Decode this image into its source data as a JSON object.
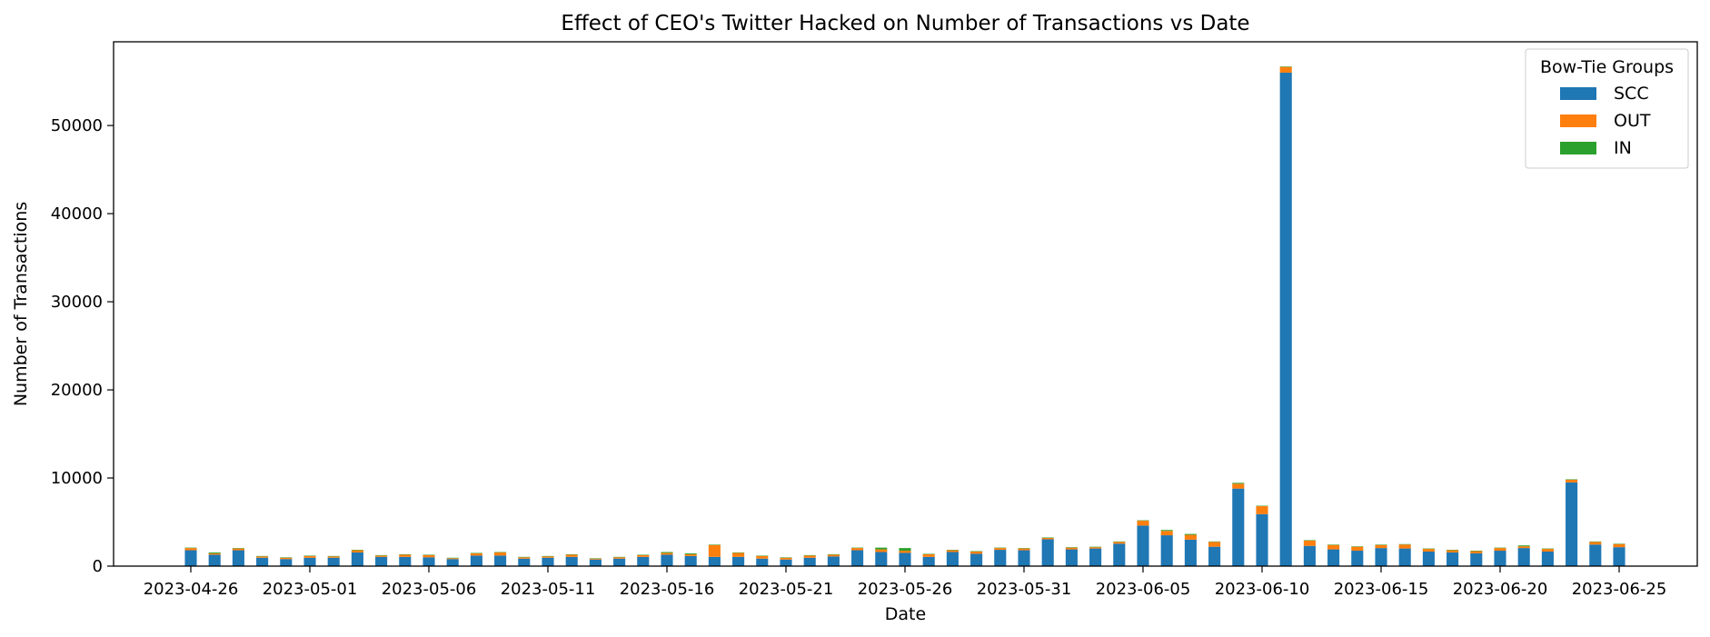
{
  "chart_data": {
    "type": "bar",
    "stacked": true,
    "title": "Effect of CEO's Twitter Hacked on Number of Transactions vs Date",
    "xlabel": "Date",
    "ylabel": "Number of Transactions",
    "ylim": [
      0,
      59500
    ],
    "yticks": [
      0,
      10000,
      20000,
      30000,
      40000,
      50000
    ],
    "grid": false,
    "legend": {
      "title": "Bow-Tie Groups",
      "placement": "top-right"
    },
    "x_tick_labels": [
      "2023-04-26",
      "2023-05-01",
      "2023-05-06",
      "2023-05-11",
      "2023-05-16",
      "2023-05-21",
      "2023-05-26",
      "2023-05-31",
      "2023-06-05",
      "2023-06-10",
      "2023-06-15",
      "2023-06-20",
      "2023-06-25"
    ],
    "categories": [
      "2023-04-26",
      "2023-04-27",
      "2023-04-28",
      "2023-04-29",
      "2023-04-30",
      "2023-05-01",
      "2023-05-02",
      "2023-05-03",
      "2023-05-04",
      "2023-05-05",
      "2023-05-06",
      "2023-05-07",
      "2023-05-08",
      "2023-05-09",
      "2023-05-10",
      "2023-05-11",
      "2023-05-12",
      "2023-05-13",
      "2023-05-14",
      "2023-05-15",
      "2023-05-16",
      "2023-05-17",
      "2023-05-18",
      "2023-05-19",
      "2023-05-20",
      "2023-05-21",
      "2023-05-22",
      "2023-05-23",
      "2023-05-24",
      "2023-05-25",
      "2023-05-26",
      "2023-05-27",
      "2023-05-28",
      "2023-05-29",
      "2023-05-30",
      "2023-05-31",
      "2023-06-01",
      "2023-06-02",
      "2023-06-03",
      "2023-06-04",
      "2023-06-05",
      "2023-06-06",
      "2023-06-07",
      "2023-06-08",
      "2023-06-09",
      "2023-06-10",
      "2023-06-11",
      "2023-06-12",
      "2023-06-13",
      "2023-06-14",
      "2023-06-15",
      "2023-06-16",
      "2023-06-17",
      "2023-06-18",
      "2023-06-19",
      "2023-06-20",
      "2023-06-21",
      "2023-06-22",
      "2023-06-23",
      "2023-06-24",
      "2023-06-25"
    ],
    "series": [
      {
        "name": "SCC",
        "color": "#1f77b4",
        "values": [
          1800,
          1300,
          1800,
          950,
          800,
          950,
          950,
          1550,
          1050,
          1050,
          1000,
          800,
          1200,
          1200,
          850,
          950,
          1050,
          750,
          850,
          1050,
          1300,
          1150,
          1050,
          1050,
          850,
          750,
          950,
          1100,
          1800,
          1600,
          1500,
          1050,
          1600,
          1400,
          1850,
          1800,
          3050,
          1900,
          2000,
          2550,
          4600,
          3500,
          3000,
          2200,
          8800,
          5900,
          56000,
          2300,
          1900,
          1750,
          2050,
          2000,
          1650,
          1550,
          1450,
          1750,
          2050,
          1650,
          9500,
          2450,
          2150
        ]
      },
      {
        "name": "OUT",
        "color": "#ff7f0e",
        "values": [
          250,
          150,
          200,
          150,
          150,
          200,
          150,
          250,
          150,
          250,
          250,
          100,
          250,
          350,
          150,
          150,
          250,
          100,
          150,
          200,
          200,
          200,
          1350,
          450,
          300,
          200,
          250,
          200,
          250,
          300,
          250,
          300,
          200,
          250,
          200,
          200,
          150,
          200,
          150,
          200,
          550,
          500,
          550,
          550,
          550,
          900,
          650,
          600,
          500,
          450,
          350,
          450,
          300,
          250,
          250,
          300,
          200,
          300,
          300,
          300,
          350
        ]
      },
      {
        "name": "IN",
        "color": "#2ca02c",
        "values": [
          50,
          100,
          50,
          50,
          50,
          50,
          50,
          50,
          50,
          50,
          50,
          50,
          50,
          50,
          50,
          50,
          50,
          50,
          50,
          50,
          100,
          100,
          50,
          50,
          50,
          50,
          50,
          50,
          50,
          200,
          300,
          50,
          50,
          50,
          50,
          50,
          50,
          50,
          50,
          50,
          50,
          100,
          100,
          50,
          100,
          50,
          50,
          50,
          50,
          50,
          50,
          50,
          50,
          50,
          50,
          50,
          100,
          50,
          50,
          50,
          50
        ]
      }
    ]
  }
}
